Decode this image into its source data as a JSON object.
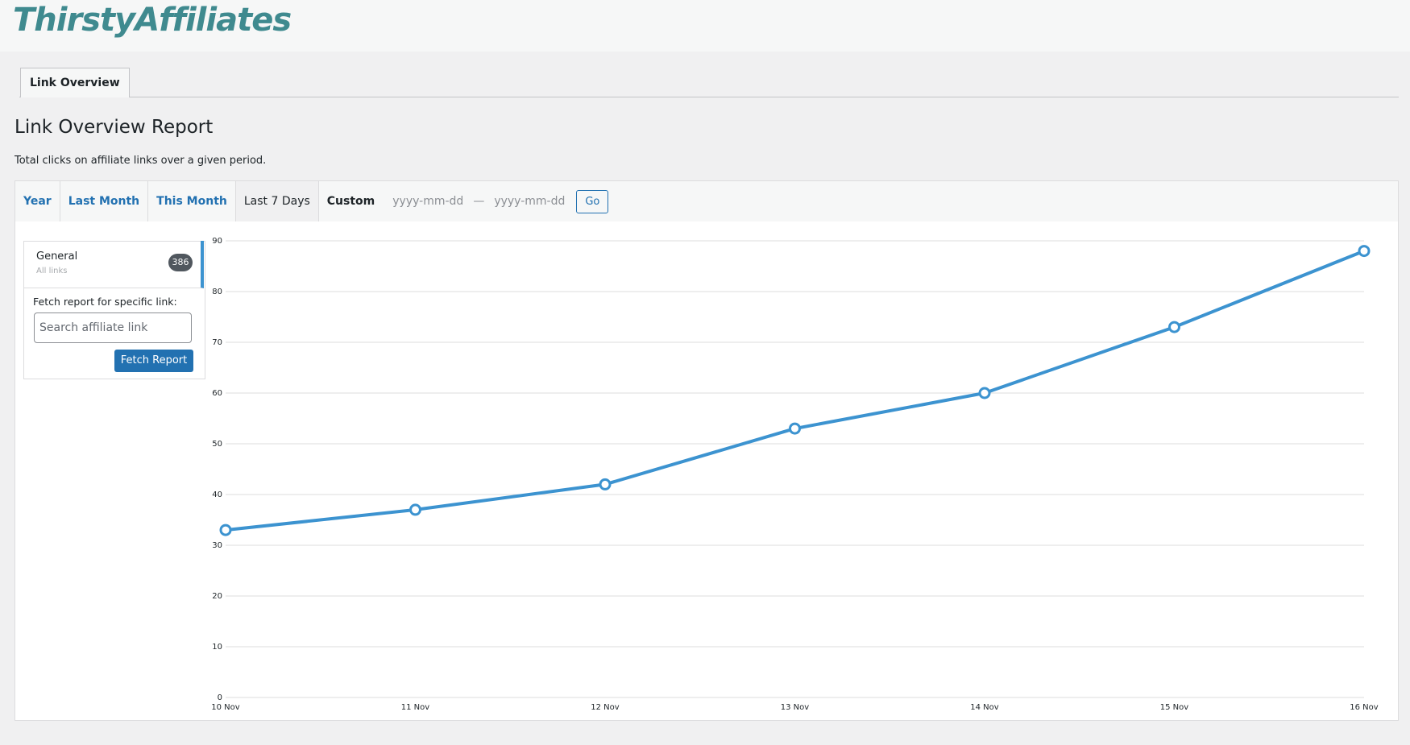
{
  "header": {
    "logo": "ThirstyAffiliates"
  },
  "tabs": [
    "Link Overview"
  ],
  "report": {
    "title": "Link Overview Report",
    "description": "Total clicks on affiliate links over a given period."
  },
  "range_tabs": [
    "Year",
    "Last Month",
    "This Month",
    "Last 7 Days"
  ],
  "custom": {
    "label": "Custom",
    "start_placeholder": "yyyy-mm-dd",
    "separator": "—",
    "end_placeholder": "yyyy-mm-dd",
    "button": "Go"
  },
  "sidebar": {
    "general": "General",
    "sublabel": "All links",
    "count": 386,
    "fetch_label": "Fetch report for specific link:",
    "search_placeholder": "Search affiliate link",
    "button": "Fetch Report"
  },
  "chart_data": {
    "type": "line",
    "categories": [
      "10 Nov",
      "11 Nov",
      "12 Nov",
      "13 Nov",
      "14 Nov",
      "15 Nov",
      "16 Nov"
    ],
    "series": [
      {
        "name": "General",
        "color": "#3c93d0",
        "values": [
          33,
          37,
          42,
          53,
          60,
          73,
          88
        ]
      }
    ],
    "ylim": [
      0,
      90
    ],
    "yticks": [
      0,
      10,
      20,
      30,
      40,
      50,
      60,
      70,
      80,
      90
    ],
    "grid": true
  }
}
